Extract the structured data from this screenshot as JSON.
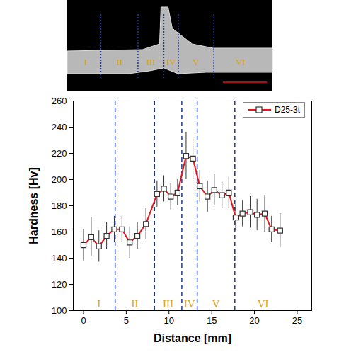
{
  "chart_data": {
    "type": "line",
    "xlabel": "Distance [mm]",
    "ylabel": "Hardness [Hv]",
    "x": [
      0,
      0.9,
      1.8,
      2.7,
      3.6,
      4.5,
      5.4,
      6.3,
      7.3,
      8.6,
      9.4,
      10.2,
      11.0,
      12.0,
      12.8,
      13.6,
      14.5,
      15.3,
      16.2,
      17.0,
      17.8,
      18.6,
      19.5,
      20.3,
      21.2,
      22.0,
      23.0
    ],
    "series": [
      {
        "name": "D25-3t",
        "color": "#e8141b",
        "marker": "square",
        "values": [
          150,
          156,
          149,
          157,
          162,
          162,
          152,
          157,
          166,
          189,
          193,
          187,
          190,
          218,
          216,
          195,
          187,
          192,
          188,
          190,
          171,
          174,
          175,
          173,
          174,
          162,
          161
        ],
        "error": [
          12,
          15,
          12,
          10,
          10,
          10,
          12,
          10,
          12,
          10,
          10,
          10,
          10,
          18,
          16,
          12,
          12,
          12,
          10,
          12,
          10,
          10,
          12,
          12,
          14,
          10,
          13
        ]
      }
    ],
    "xlim": [
      -1.2,
      26.7
    ],
    "xticks": [
      0,
      5,
      10,
      15,
      20,
      25
    ],
    "ylim": [
      100,
      260
    ],
    "yticks": [
      100,
      120,
      140,
      160,
      180,
      200,
      220,
      240,
      260
    ],
    "legend": "upper right",
    "boundaries": [
      3.7,
      8.3,
      11.5,
      13.3,
      17.7
    ],
    "regions": [
      {
        "label": "I",
        "x": 1.8
      },
      {
        "label": "II",
        "x": 6.0
      },
      {
        "label": "III",
        "x": 9.9
      },
      {
        "label": "IV",
        "x": 12.4
      },
      {
        "label": "V",
        "x": 15.5
      },
      {
        "label": "VI",
        "x": 21.0
      }
    ],
    "region_label_y": 105
  }
}
